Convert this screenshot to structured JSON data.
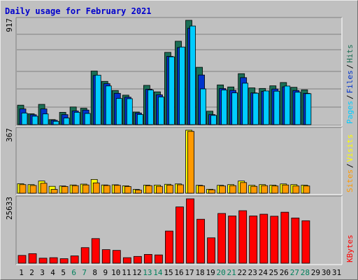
{
  "title": "Daily usage for February 2021",
  "colors": {
    "hits": "#1b6e55",
    "files": "#0033cc",
    "pages": "#00ccff",
    "visits": "#ffff00",
    "sites": "#ff9900",
    "kbytes": "#ff0000",
    "title": "#0000cc",
    "weekend": "#00805c"
  },
  "chart_data": [
    {
      "type": "bar",
      "title": "Daily usage for February 2021",
      "categories": [
        "1",
        "2",
        "3",
        "4",
        "5",
        "6",
        "7",
        "8",
        "9",
        "10",
        "11",
        "12",
        "13",
        "14",
        "15",
        "16",
        "17",
        "18",
        "19",
        "20",
        "21",
        "22",
        "23",
        "24",
        "25",
        "26",
        "27",
        "28",
        "29",
        "30",
        "31"
      ],
      "weekend_days": [
        "6",
        "7",
        "13",
        "14",
        "20",
        "21",
        "27",
        "28"
      ],
      "ymax_label": "917",
      "ylim": [
        0,
        917
      ],
      "legend": [
        {
          "name": "Pages",
          "color": "pages"
        },
        {
          "name": "Files",
          "color": "files"
        },
        {
          "name": "Hits",
          "color": "hits"
        }
      ],
      "separator": "/",
      "series": [
        {
          "name": "Hits",
          "values": [
            171,
            95,
            178,
            44,
            108,
            155,
            144,
            471,
            380,
            300,
            259,
            111,
            345,
            288,
            635,
            733,
            917,
            504,
            118,
            349,
            331,
            448,
            323,
            318,
            341,
            370,
            328,
            306,
            null,
            null,
            null
          ]
        },
        {
          "name": "Files",
          "values": [
            138,
            87,
            138,
            38,
            88,
            120,
            128,
            432,
            360,
            275,
            241,
            102,
            311,
            262,
            600,
            677,
            848,
            436,
            88,
            317,
            301,
            413,
            279,
            292,
            313,
            332,
            300,
            275,
            null,
            null,
            null
          ]
        },
        {
          "name": "Pages",
          "values": [
            102,
            74,
            94,
            29,
            58,
            108,
            98,
            435,
            340,
            230,
            228,
            89,
            305,
            243,
            596,
            682,
            867,
            314,
            81,
            304,
            279,
            364,
            276,
            296,
            294,
            339,
            285,
            272,
            null,
            null,
            null
          ]
        }
      ]
    },
    {
      "type": "bar",
      "categories": [
        "1",
        "2",
        "3",
        "4",
        "5",
        "6",
        "7",
        "8",
        "9",
        "10",
        "11",
        "12",
        "13",
        "14",
        "15",
        "16",
        "17",
        "18",
        "19",
        "20",
        "21",
        "22",
        "23",
        "24",
        "25",
        "26",
        "27",
        "28",
        "29",
        "30",
        "31"
      ],
      "ymax_label": "367",
      "ylim": [
        0,
        367
      ],
      "legend": [
        {
          "name": "Sites",
          "color": "sites"
        },
        {
          "name": "Visits",
          "color": "visits"
        }
      ],
      "separator": "/",
      "series": [
        {
          "name": "Visits",
          "values": [
            55,
            50,
            71,
            40,
            42,
            48,
            53,
            80,
            48,
            49,
            43,
            22,
            47,
            47,
            52,
            54,
            367,
            46,
            23,
            46,
            50,
            71,
            46,
            50,
            47,
            54,
            50,
            47,
            null,
            null,
            null
          ]
        },
        {
          "name": "Sites",
          "values": [
            50,
            45,
            58,
            22,
            39,
            44,
            48,
            60,
            45,
            46,
            39,
            18,
            44,
            40,
            47,
            49,
            360,
            43,
            20,
            42,
            44,
            62,
            40,
            44,
            42,
            48,
            42,
            42,
            null,
            null,
            null
          ]
        }
      ]
    },
    {
      "type": "bar",
      "categories": [
        "1",
        "2",
        "3",
        "4",
        "5",
        "6",
        "7",
        "8",
        "9",
        "10",
        "11",
        "12",
        "13",
        "14",
        "15",
        "16",
        "17",
        "18",
        "19",
        "20",
        "21",
        "22",
        "23",
        "24",
        "25",
        "26",
        "27",
        "28",
        "29",
        "30",
        "31"
      ],
      "ymax_label": "25633",
      "ylim": [
        0,
        25633
      ],
      "legend": [
        {
          "name": "KBytes",
          "color": "kbytes"
        }
      ],
      "series": [
        {
          "name": "KBytes",
          "values": [
            3100,
            3800,
            2000,
            2200,
            1800,
            2900,
            6200,
            9800,
            5400,
            5100,
            2200,
            2700,
            3500,
            3300,
            12800,
            22400,
            25633,
            17500,
            10100,
            19800,
            18800,
            20900,
            18800,
            19500,
            18700,
            20300,
            18000,
            16900,
            null,
            null,
            null
          ]
        }
      ]
    }
  ]
}
